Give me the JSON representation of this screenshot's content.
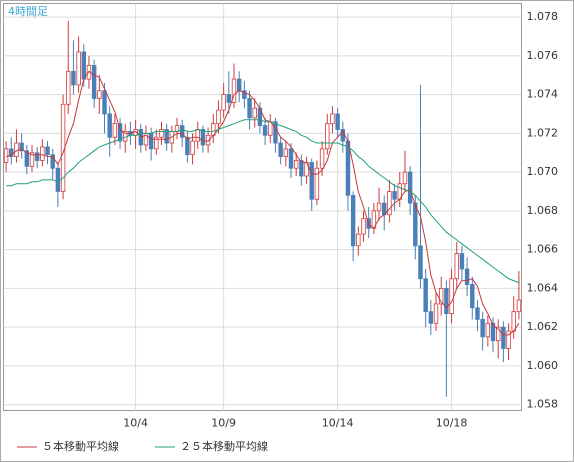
{
  "chart_data": {
    "type": "candlestick",
    "title": "4時間足",
    "categories": [
      null,
      null,
      null,
      null,
      null,
      null,
      null,
      null,
      null,
      null,
      null,
      null,
      null,
      null,
      null,
      null,
      null,
      null,
      null,
      null,
      null,
      null,
      null,
      null,
      null,
      "10/4",
      null,
      null,
      null,
      null,
      null,
      null,
      null,
      null,
      null,
      null,
      null,
      null,
      null,
      null,
      null,
      null,
      "10/9",
      null,
      null,
      null,
      null,
      null,
      null,
      null,
      null,
      null,
      null,
      null,
      null,
      null,
      null,
      null,
      null,
      null,
      null,
      null,
      null,
      null,
      "10/14",
      null,
      null,
      null,
      null,
      null,
      null,
      null,
      null,
      null,
      null,
      null,
      null,
      null,
      null,
      null,
      null,
      null,
      null,
      null,
      null,
      null,
      "10/18",
      null,
      null,
      null,
      null,
      null,
      null,
      null,
      null,
      null,
      null,
      null,
      null,
      null
    ],
    "open": [
      1.0705,
      1.0712,
      1.0708,
      1.0715,
      1.0711,
      1.0703,
      1.071,
      1.0706,
      1.0713,
      1.0709,
      1.0702,
      1.069,
      1.0735,
      1.0752,
      1.0745,
      1.0762,
      1.0748,
      1.0755,
      1.0738,
      1.0742,
      1.073,
      1.0718,
      1.0725,
      1.0716,
      1.0721,
      1.0719,
      1.0722,
      1.0714,
      1.072,
      1.0712,
      1.0718,
      1.0722,
      1.0715,
      1.0721,
      1.0724,
      1.0718,
      1.0709,
      1.0716,
      1.0722,
      1.0714,
      1.0719,
      1.0725,
      1.0732,
      1.074,
      1.0736,
      1.0748,
      1.0742,
      1.0738,
      1.0728,
      1.0733,
      1.0724,
      1.0719,
      1.0726,
      1.0715,
      1.0708,
      1.0712,
      1.0702,
      1.0706,
      1.0698,
      1.0705,
      1.0686,
      1.0702,
      1.0712,
      1.0725,
      1.073,
      1.0722,
      1.0716,
      1.0688,
      1.0662,
      1.0668,
      1.0676,
      1.0671,
      1.068,
      1.0684,
      1.0678,
      1.069,
      1.0686,
      1.0694,
      1.07,
      1.0684,
      1.0662,
      1.0645,
      1.0628,
      1.0622,
      1.0632,
      1.064,
      1.0627,
      1.0645,
      1.0658,
      1.065,
      1.0642,
      1.063,
      1.0624,
      1.0615,
      1.0622,
      1.0613,
      1.062,
      1.0609,
      1.0618,
      1.0628
    ],
    "high": [
      1.0716,
      1.0718,
      1.0722,
      1.072,
      1.0714,
      1.0714,
      1.0713,
      1.0717,
      1.0716,
      1.0712,
      1.0705,
      1.074,
      1.0778,
      1.0768,
      1.077,
      1.0766,
      1.076,
      1.0758,
      1.075,
      1.0746,
      1.0734,
      1.073,
      1.0728,
      1.0725,
      1.0726,
      1.0727,
      1.0725,
      1.0724,
      1.0723,
      1.0722,
      1.0726,
      1.0725,
      1.0724,
      1.0728,
      1.0727,
      1.0721,
      1.072,
      1.0726,
      1.0724,
      1.0723,
      1.073,
      1.0737,
      1.0746,
      1.0752,
      1.0756,
      1.0752,
      1.0747,
      1.0742,
      1.0738,
      1.0736,
      1.0728,
      1.073,
      1.0728,
      1.0718,
      1.0716,
      1.0715,
      1.071,
      1.0709,
      1.0708,
      1.0707,
      1.0706,
      1.0716,
      1.073,
      1.0734,
      1.0733,
      1.0726,
      1.072,
      1.069,
      1.0672,
      1.068,
      1.0682,
      1.0684,
      1.0692,
      1.0688,
      1.0696,
      1.0694,
      1.07,
      1.0711,
      1.0703,
      1.0688,
      1.0745,
      1.065,
      1.0634,
      1.0638,
      1.0646,
      1.0644,
      1.065,
      1.0664,
      1.0662,
      1.0656,
      1.0646,
      1.0634,
      1.0628,
      1.0626,
      1.0625,
      1.0624,
      1.0623,
      1.0622,
      1.0636,
      1.0649
    ],
    "low": [
      1.07,
      1.0704,
      1.0705,
      1.0707,
      1.0699,
      1.07,
      1.0702,
      1.0703,
      1.0704,
      1.0696,
      1.0682,
      1.0686,
      1.073,
      1.074,
      1.0741,
      1.0744,
      1.0743,
      1.0733,
      1.073,
      1.072,
      1.0708,
      1.0714,
      1.0712,
      1.071,
      1.0714,
      1.0712,
      1.071,
      1.0711,
      1.0706,
      1.0709,
      1.0714,
      1.0711,
      1.071,
      1.0717,
      1.0713,
      1.0705,
      1.0704,
      1.0712,
      1.071,
      1.071,
      1.0715,
      1.072,
      1.0728,
      1.073,
      1.0733,
      1.0736,
      1.0733,
      1.0722,
      1.0723,
      1.072,
      1.0714,
      1.0715,
      1.071,
      1.0704,
      1.0703,
      1.0697,
      1.0698,
      1.0693,
      1.0694,
      1.068,
      1.0683,
      1.0698,
      1.0709,
      1.072,
      1.0718,
      1.071,
      1.068,
      1.0654,
      1.0657,
      1.0664,
      1.0666,
      1.0668,
      1.0675,
      1.067,
      1.0674,
      1.068,
      1.0682,
      1.069,
      1.0678,
      1.0655,
      1.064,
      1.062,
      1.0616,
      1.0618,
      1.0626,
      1.0584,
      1.0622,
      1.064,
      1.0644,
      1.0636,
      1.0624,
      1.0618,
      1.0608,
      1.061,
      1.0607,
      1.0604,
      1.0602,
      1.0603,
      1.0614,
      1.0624
    ],
    "close": [
      1.0712,
      1.0708,
      1.0715,
      1.0711,
      1.0703,
      1.071,
      1.0706,
      1.0713,
      1.0709,
      1.0702,
      1.069,
      1.0735,
      1.0752,
      1.0745,
      1.0762,
      1.0748,
      1.0755,
      1.0738,
      1.0742,
      1.073,
      1.0718,
      1.0725,
      1.0716,
      1.0721,
      1.0719,
      1.0722,
      1.0714,
      1.072,
      1.0712,
      1.0718,
      1.0722,
      1.0715,
      1.0721,
      1.0724,
      1.0718,
      1.0709,
      1.0716,
      1.0722,
      1.0714,
      1.0719,
      1.0725,
      1.0732,
      1.074,
      1.0736,
      1.0748,
      1.0742,
      1.0738,
      1.0728,
      1.0733,
      1.0724,
      1.0719,
      1.0726,
      1.0715,
      1.0708,
      1.0712,
      1.0702,
      1.0706,
      1.0698,
      1.0705,
      1.0686,
      1.0702,
      1.0712,
      1.0725,
      1.073,
      1.0722,
      1.0716,
      1.0688,
      1.0662,
      1.0668,
      1.0676,
      1.0671,
      1.068,
      1.0684,
      1.0678,
      1.069,
      1.0686,
      1.0694,
      1.07,
      1.0684,
      1.0662,
      1.0645,
      1.0628,
      1.0622,
      1.0632,
      1.064,
      1.0627,
      1.0645,
      1.0658,
      1.065,
      1.0642,
      1.063,
      1.0624,
      1.0615,
      1.0622,
      1.0613,
      1.062,
      1.0609,
      1.0618,
      1.0628,
      1.0634
    ],
    "up_color": "#d03a3a",
    "down_color": "#4a7fb8",
    "series": [
      {
        "name": "５本移動平均線",
        "color": "#c8393a",
        "values": [
          1.0708,
          1.0709,
          1.0711,
          1.0712,
          1.071,
          1.0709,
          1.0709,
          1.0709,
          1.0708,
          1.0708,
          1.0704,
          1.071,
          1.0718,
          1.0725,
          1.0737,
          1.0748,
          1.0752,
          1.075,
          1.0749,
          1.0743,
          1.0737,
          1.0731,
          1.0722,
          1.072,
          1.072,
          1.0721,
          1.0718,
          1.0719,
          1.0717,
          1.0717,
          1.0717,
          1.0717,
          1.0718,
          1.072,
          1.072,
          1.0717,
          1.0718,
          1.0718,
          1.0716,
          1.0716,
          1.0719,
          1.0722,
          1.0726,
          1.0732,
          1.074,
          1.0742,
          1.0741,
          1.074,
          1.0737,
          1.0733,
          1.0727,
          1.0726,
          1.0723,
          1.0718,
          1.0716,
          1.0713,
          1.0709,
          1.0705,
          1.0705,
          1.0699,
          1.0699,
          1.0701,
          1.0706,
          1.0715,
          1.0718,
          1.0721,
          1.0716,
          1.0704,
          1.069,
          1.0682,
          1.0673,
          1.0671,
          1.0676,
          1.0678,
          1.0681,
          1.0684,
          1.0686,
          1.069,
          1.0691,
          1.0683,
          1.0677,
          1.0664,
          1.0647,
          1.0638,
          1.0633,
          1.063,
          1.0633,
          1.064,
          1.0644,
          1.0644,
          1.0645,
          1.0641,
          1.0632,
          1.0627,
          1.0621,
          1.0619,
          1.0616,
          1.0616,
          1.0618,
          1.0622
        ]
      },
      {
        "name": "２５本移動平均線",
        "color": "#22a07c",
        "values": [
          1.0693,
          1.0693,
          1.0694,
          1.0694,
          1.0694,
          1.0695,
          1.0695,
          1.0696,
          1.0696,
          1.0696,
          1.0695,
          1.0697,
          1.07,
          1.0702,
          1.0705,
          1.0707,
          1.0709,
          1.0711,
          1.0713,
          1.0714,
          1.0715,
          1.0716,
          1.0717,
          1.0718,
          1.0719,
          1.0719,
          1.072,
          1.072,
          1.072,
          1.0721,
          1.0721,
          1.0721,
          1.0721,
          1.0721,
          1.0722,
          1.0721,
          1.0721,
          1.0722,
          1.0721,
          1.0721,
          1.0721,
          1.0722,
          1.0723,
          1.0724,
          1.0725,
          1.0726,
          1.0727,
          1.0727,
          1.0727,
          1.0727,
          1.0726,
          1.0726,
          1.0725,
          1.0724,
          1.0723,
          1.0722,
          1.0721,
          1.0719,
          1.0718,
          1.0716,
          1.0715,
          1.0715,
          1.0715,
          1.0715,
          1.0715,
          1.0714,
          1.0713,
          1.0711,
          1.0708,
          1.0706,
          1.0703,
          1.0701,
          1.0699,
          1.0697,
          1.0695,
          1.0693,
          1.0692,
          1.0691,
          1.069,
          1.0688,
          1.0685,
          1.0682,
          1.0678,
          1.0675,
          1.0672,
          1.0669,
          1.0667,
          1.0665,
          1.0663,
          1.0661,
          1.0659,
          1.0657,
          1.0655,
          1.0653,
          1.0651,
          1.0649,
          1.0647,
          1.0645,
          1.0644,
          1.0643
        ]
      }
    ],
    "ylim": [
      1.0577,
      1.0787
    ],
    "yticks": [
      1.058,
      {
        "value": 1.06,
        "label": "1.060"
      },
      1.062,
      1.064,
      1.066,
      1.068,
      {
        "value": 1.07,
        "label": "1.070"
      },
      1.072,
      1.074,
      1.076,
      1.078
    ],
    "grid": true
  }
}
